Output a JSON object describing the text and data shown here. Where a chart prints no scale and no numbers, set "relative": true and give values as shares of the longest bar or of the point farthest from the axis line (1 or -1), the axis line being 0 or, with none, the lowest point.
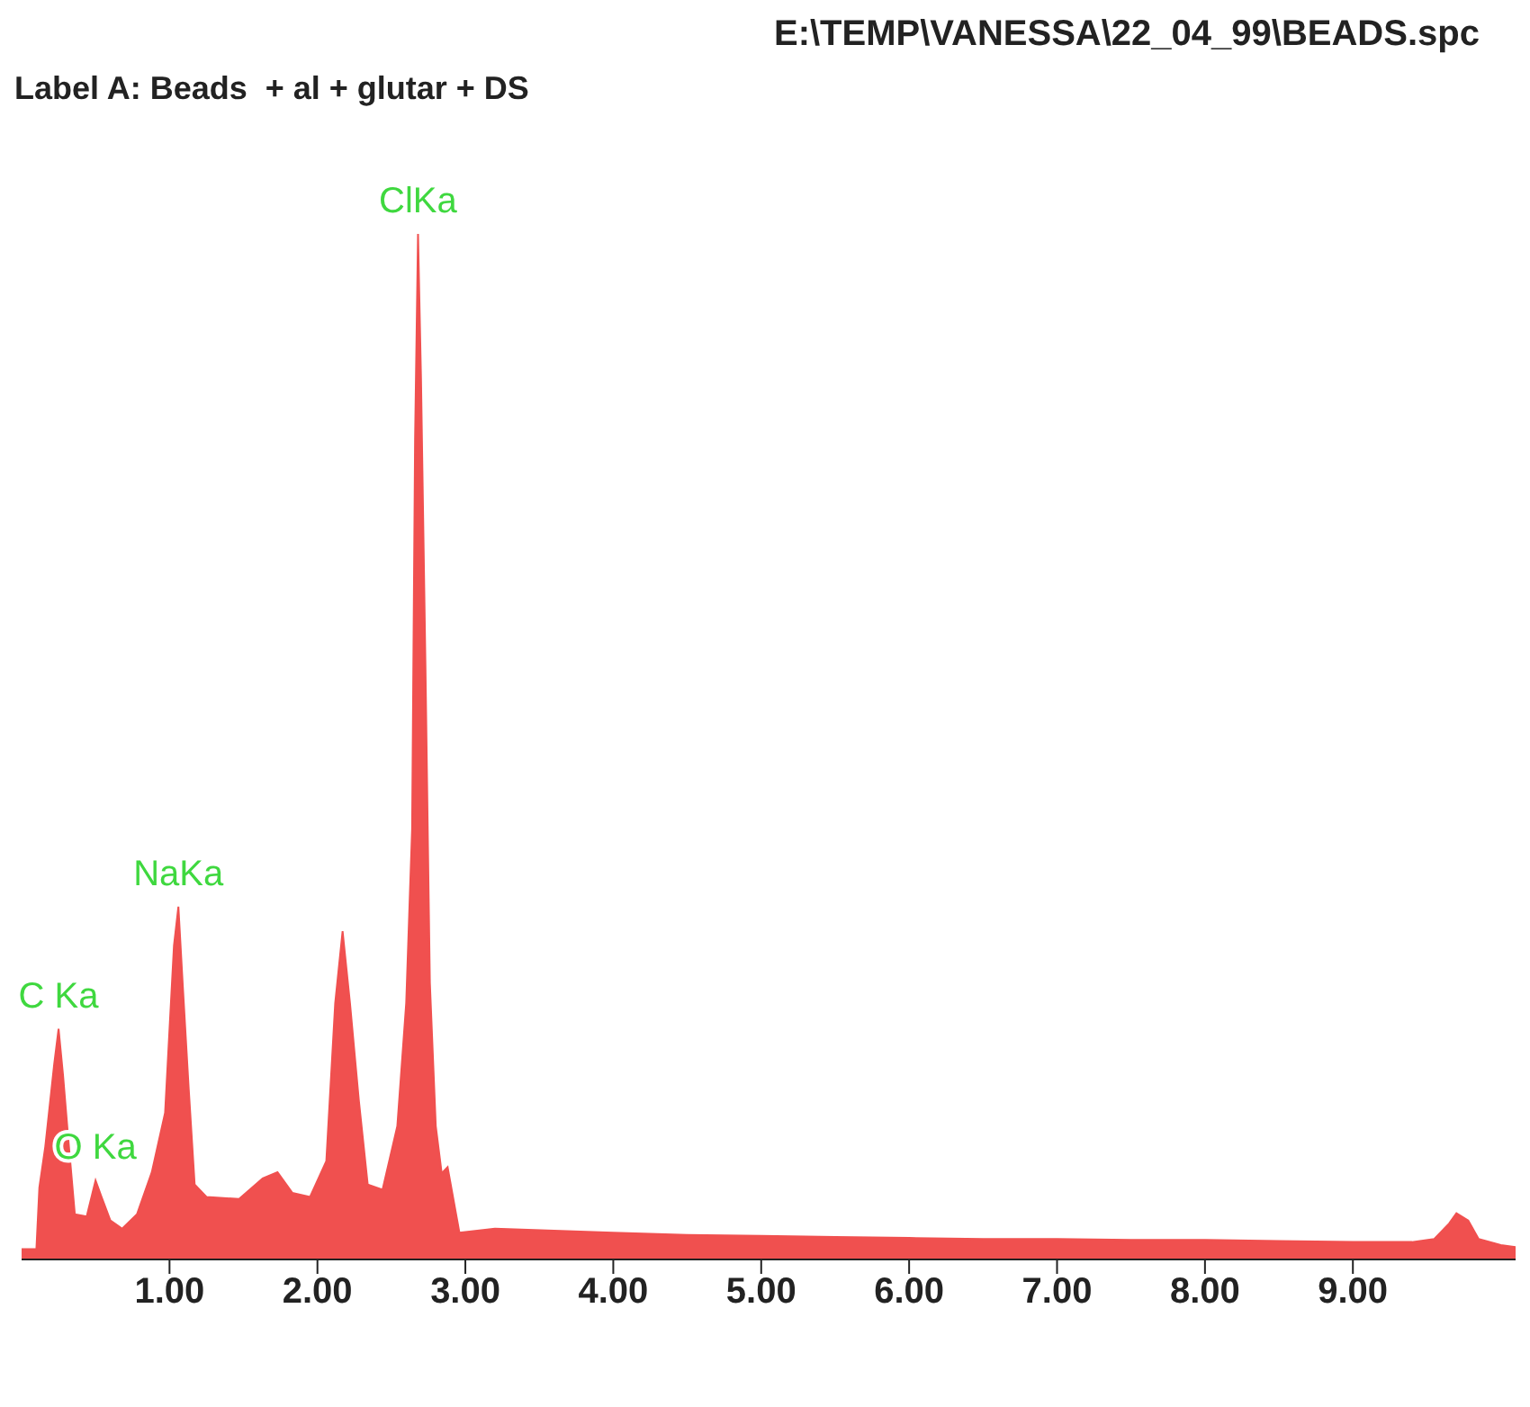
{
  "chart_data": {
    "type": "area",
    "title": "E:\\TEMP\\VANESSA\\22_04_99\\BEADS.spc",
    "subtitle": "Label A: Beads  + al + glutar + DS",
    "relative": true,
    "x": [
      0,
      0.1,
      0.12,
      0.16,
      0.22,
      0.25,
      0.28,
      0.32,
      0.36,
      0.44,
      0.5,
      0.54,
      0.6,
      0.68,
      0.78,
      0.88,
      0.97,
      1.03,
      1.06,
      1.09,
      1.13,
      1.17,
      1.25,
      1.47,
      1.63,
      1.73,
      1.83,
      1.95,
      2.06,
      2.12,
      2.17,
      2.22,
      2.28,
      2.34,
      2.44,
      2.54,
      2.6,
      2.64,
      2.66,
      2.68,
      2.7,
      2.73,
      2.76,
      2.8,
      2.84,
      2.88,
      2.96,
      3.2,
      3.6,
      4.0,
      4.5,
      5.0,
      5.5,
      6.0,
      6.5,
      7.0,
      7.5,
      8.0,
      8.5,
      9.0,
      9.4,
      9.55,
      9.65,
      9.7,
      9.78,
      9.85,
      10.0,
      10.1
    ],
    "series": [
      {
        "color": "#f0504f",
        "values": [
          0.01,
          0.01,
          0.07,
          0.11,
          0.19,
          0.225,
          0.18,
          0.11,
          0.044,
          0.042,
          0.077,
          0.061,
          0.038,
          0.03,
          0.044,
          0.085,
          0.143,
          0.306,
          0.344,
          0.266,
          0.166,
          0.073,
          0.061,
          0.059,
          0.079,
          0.085,
          0.065,
          0.061,
          0.096,
          0.25,
          0.32,
          0.25,
          0.155,
          0.073,
          0.068,
          0.13,
          0.25,
          0.42,
          0.8,
          1.0,
          0.86,
          0.58,
          0.27,
          0.13,
          0.084,
          0.09,
          0.026,
          0.03,
          0.028,
          0.026,
          0.024,
          0.023,
          0.022,
          0.021,
          0.02,
          0.02,
          0.019,
          0.019,
          0.018,
          0.017,
          0.017,
          0.02,
          0.035,
          0.045,
          0.038,
          0.02,
          0.014,
          0.012
        ]
      }
    ],
    "xlim": [
      0,
      10.1
    ],
    "xticks": [
      {
        "value": 1,
        "label": "1.00"
      },
      {
        "value": 2,
        "label": "2.00"
      },
      {
        "value": 3,
        "label": "3.00"
      },
      {
        "value": 4,
        "label": "4.00"
      },
      {
        "value": 5,
        "label": "5.00"
      },
      {
        "value": 6,
        "label": "6.00"
      },
      {
        "value": 7,
        "label": "7.00"
      },
      {
        "value": 8,
        "label": "8.00"
      },
      {
        "value": 9,
        "label": "9.00"
      }
    ],
    "annotations": [
      {
        "text": "C Ka",
        "x": 0.25,
        "y": 0.225
      },
      {
        "text": "O Ka",
        "x": 0.5,
        "y": 0.077
      },
      {
        "text": "NaKa",
        "x": 1.06,
        "y": 0.344
      },
      {
        "text": "ClKa",
        "x": 2.68,
        "y": 1.0
      }
    ],
    "grid": false,
    "legend": false
  }
}
